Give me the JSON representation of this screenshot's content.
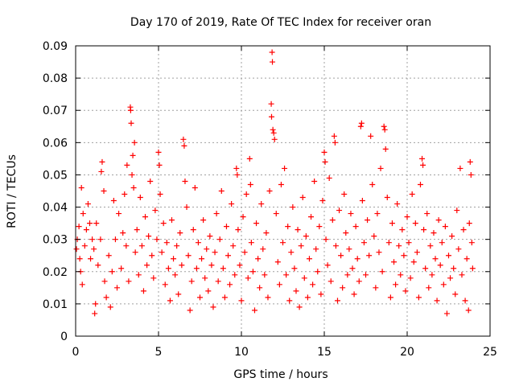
{
  "chart_data": {
    "type": "scatter",
    "title": "Day 170 of 2019, Rate Of TEC Index for receiver oran",
    "xlabel": "GPS time / hours",
    "ylabel": "ROTI / TECUs",
    "xlim": [
      0,
      25
    ],
    "ylim": [
      0,
      0.09
    ],
    "xticks": [
      "0",
      "5",
      "10",
      "15",
      "20",
      "25"
    ],
    "yticks": [
      "0",
      "0.01",
      "0.02",
      "0.03",
      "0.04",
      "0.05",
      "0.06",
      "0.07",
      "0.08",
      "0.09"
    ],
    "grid": true,
    "marker": "plus",
    "color": "#ff0000",
    "series": [
      {
        "points": [
          [
            0.05,
            0.027
          ],
          [
            0.1,
            0.03
          ],
          [
            0.2,
            0.034
          ],
          [
            0.25,
            0.024
          ],
          [
            0.3,
            0.02
          ],
          [
            0.35,
            0.046
          ],
          [
            0.4,
            0.016
          ],
          [
            0.45,
            0.038
          ],
          [
            0.55,
            0.028
          ],
          [
            0.65,
            0.033
          ],
          [
            0.75,
            0.041
          ],
          [
            0.85,
            0.035
          ],
          [
            0.9,
            0.024
          ],
          [
            1.0,
            0.03
          ],
          [
            1.1,
            0.027
          ],
          [
            1.15,
            0.007
          ],
          [
            1.2,
            0.01
          ],
          [
            1.25,
            0.035
          ],
          [
            1.35,
            0.022
          ],
          [
            1.5,
            0.03
          ],
          [
            1.55,
            0.051
          ],
          [
            1.6,
            0.054
          ],
          [
            1.7,
            0.045
          ],
          [
            1.75,
            0.017
          ],
          [
            1.85,
            0.012
          ],
          [
            2.0,
            0.025
          ],
          [
            2.1,
            0.009
          ],
          [
            2.2,
            0.02
          ],
          [
            2.3,
            0.042
          ],
          [
            2.4,
            0.03
          ],
          [
            2.5,
            0.015
          ],
          [
            2.6,
            0.038
          ],
          [
            2.75,
            0.021
          ],
          [
            2.85,
            0.032
          ],
          [
            2.95,
            0.044
          ],
          [
            3.05,
            0.028
          ],
          [
            3.1,
            0.053
          ],
          [
            3.2,
            0.017
          ],
          [
            3.3,
            0.071
          ],
          [
            3.32,
            0.07
          ],
          [
            3.35,
            0.066
          ],
          [
            3.4,
            0.05
          ],
          [
            3.45,
            0.056
          ],
          [
            3.5,
            0.046
          ],
          [
            3.55,
            0.06
          ],
          [
            3.6,
            0.026
          ],
          [
            3.7,
            0.033
          ],
          [
            3.8,
            0.019
          ],
          [
            3.9,
            0.043
          ],
          [
            4.0,
            0.028
          ],
          [
            4.1,
            0.014
          ],
          [
            4.2,
            0.037
          ],
          [
            4.3,
            0.022
          ],
          [
            4.4,
            0.031
          ],
          [
            4.5,
            0.048
          ],
          [
            4.6,
            0.025
          ],
          [
            4.7,
            0.018
          ],
          [
            4.8,
            0.039
          ],
          [
            4.9,
            0.03
          ],
          [
            5.0,
            0.057
          ],
          [
            5.05,
            0.053
          ],
          [
            5.1,
            0.044
          ],
          [
            5.2,
            0.026
          ],
          [
            5.3,
            0.035
          ],
          [
            5.4,
            0.016
          ],
          [
            5.5,
            0.029
          ],
          [
            5.6,
            0.021
          ],
          [
            5.7,
            0.011
          ],
          [
            5.8,
            0.036
          ],
          [
            5.9,
            0.024
          ],
          [
            6.0,
            0.019
          ],
          [
            6.1,
            0.028
          ],
          [
            6.2,
            0.013
          ],
          [
            6.3,
            0.032
          ],
          [
            6.4,
            0.022
          ],
          [
            6.5,
            0.061
          ],
          [
            6.55,
            0.059
          ],
          [
            6.6,
            0.048
          ],
          [
            6.7,
            0.04
          ],
          [
            6.8,
            0.025
          ],
          [
            6.9,
            0.008
          ],
          [
            7.0,
            0.017
          ],
          [
            7.1,
            0.033
          ],
          [
            7.2,
            0.046
          ],
          [
            7.3,
            0.021
          ],
          [
            7.4,
            0.029
          ],
          [
            7.5,
            0.012
          ],
          [
            7.6,
            0.024
          ],
          [
            7.7,
            0.036
          ],
          [
            7.8,
            0.018
          ],
          [
            7.9,
            0.027
          ],
          [
            8.0,
            0.014
          ],
          [
            8.1,
            0.031
          ],
          [
            8.2,
            0.022
          ],
          [
            8.3,
            0.009
          ],
          [
            8.4,
            0.026
          ],
          [
            8.5,
            0.038
          ],
          [
            8.6,
            0.017
          ],
          [
            8.7,
            0.03
          ],
          [
            8.8,
            0.045
          ],
          [
            8.9,
            0.021
          ],
          [
            9.0,
            0.012
          ],
          [
            9.1,
            0.034
          ],
          [
            9.2,
            0.025
          ],
          [
            9.3,
            0.016
          ],
          [
            9.4,
            0.041
          ],
          [
            9.5,
            0.028
          ],
          [
            9.6,
            0.019
          ],
          [
            9.7,
            0.052
          ],
          [
            9.75,
            0.05
          ],
          [
            9.8,
            0.033
          ],
          [
            9.9,
            0.022
          ],
          [
            10.0,
            0.011
          ],
          [
            10.1,
            0.037
          ],
          [
            10.2,
            0.026
          ],
          [
            10.3,
            0.044
          ],
          [
            10.4,
            0.018
          ],
          [
            10.5,
            0.055
          ],
          [
            10.55,
            0.047
          ],
          [
            10.6,
            0.029
          ],
          [
            10.7,
            0.02
          ],
          [
            10.8,
            0.008
          ],
          [
            10.9,
            0.035
          ],
          [
            11.0,
            0.024
          ],
          [
            11.1,
            0.015
          ],
          [
            11.2,
            0.041
          ],
          [
            11.3,
            0.027
          ],
          [
            11.4,
            0.019
          ],
          [
            11.5,
            0.032
          ],
          [
            11.6,
            0.012
          ],
          [
            11.7,
            0.045
          ],
          [
            11.8,
            0.072
          ],
          [
            11.82,
            0.068
          ],
          [
            11.85,
            0.088
          ],
          [
            11.87,
            0.085
          ],
          [
            11.9,
            0.064
          ],
          [
            11.95,
            0.063
          ],
          [
            12.0,
            0.061
          ],
          [
            12.1,
            0.038
          ],
          [
            12.2,
            0.023
          ],
          [
            12.3,
            0.016
          ],
          [
            12.4,
            0.047
          ],
          [
            12.5,
            0.029
          ],
          [
            12.6,
            0.052
          ],
          [
            12.7,
            0.019
          ],
          [
            12.8,
            0.034
          ],
          [
            12.9,
            0.011
          ],
          [
            13.0,
            0.026
          ],
          [
            13.1,
            0.04
          ],
          [
            13.2,
            0.021
          ],
          [
            13.3,
            0.014
          ],
          [
            13.4,
            0.033
          ],
          [
            13.5,
            0.009
          ],
          [
            13.6,
            0.028
          ],
          [
            13.7,
            0.043
          ],
          [
            13.8,
            0.018
          ],
          [
            13.9,
            0.031
          ],
          [
            14.0,
            0.012
          ],
          [
            14.1,
            0.024
          ],
          [
            14.2,
            0.037
          ],
          [
            14.3,
            0.016
          ],
          [
            14.4,
            0.048
          ],
          [
            14.5,
            0.027
          ],
          [
            14.6,
            0.02
          ],
          [
            14.7,
            0.034
          ],
          [
            14.8,
            0.013
          ],
          [
            14.9,
            0.042
          ],
          [
            15.0,
            0.057
          ],
          [
            15.05,
            0.054
          ],
          [
            15.1,
            0.03
          ],
          [
            15.2,
            0.022
          ],
          [
            15.3,
            0.049
          ],
          [
            15.4,
            0.017
          ],
          [
            15.5,
            0.036
          ],
          [
            15.6,
            0.062
          ],
          [
            15.65,
            0.06
          ],
          [
            15.7,
            0.028
          ],
          [
            15.8,
            0.011
          ],
          [
            15.9,
            0.039
          ],
          [
            16.0,
            0.025
          ],
          [
            16.1,
            0.015
          ],
          [
            16.2,
            0.044
          ],
          [
            16.3,
            0.032
          ],
          [
            16.4,
            0.019
          ],
          [
            16.5,
            0.027
          ],
          [
            16.6,
            0.038
          ],
          [
            16.7,
            0.021
          ],
          [
            16.8,
            0.013
          ],
          [
            16.9,
            0.034
          ],
          [
            17.0,
            0.024
          ],
          [
            17.1,
            0.017
          ],
          [
            17.2,
            0.065
          ],
          [
            17.25,
            0.066
          ],
          [
            17.3,
            0.042
          ],
          [
            17.4,
            0.029
          ],
          [
            17.5,
            0.019
          ],
          [
            17.6,
            0.036
          ],
          [
            17.7,
            0.025
          ],
          [
            17.8,
            0.062
          ],
          [
            17.9,
            0.047
          ],
          [
            18.0,
            0.031
          ],
          [
            18.1,
            0.015
          ],
          [
            18.2,
            0.038
          ],
          [
            18.3,
            0.026
          ],
          [
            18.4,
            0.052
          ],
          [
            18.5,
            0.02
          ],
          [
            18.6,
            0.065
          ],
          [
            18.65,
            0.064
          ],
          [
            18.7,
            0.058
          ],
          [
            18.8,
            0.043
          ],
          [
            18.9,
            0.029
          ],
          [
            19.0,
            0.012
          ],
          [
            19.1,
            0.035
          ],
          [
            19.2,
            0.023
          ],
          [
            19.3,
            0.016
          ],
          [
            19.4,
            0.041
          ],
          [
            19.5,
            0.028
          ],
          [
            19.6,
            0.019
          ],
          [
            19.7,
            0.033
          ],
          [
            19.8,
            0.025
          ],
          [
            19.9,
            0.014
          ],
          [
            20.0,
            0.037
          ],
          [
            20.1,
            0.029
          ],
          [
            20.2,
            0.018
          ],
          [
            20.3,
            0.044
          ],
          [
            20.4,
            0.023
          ],
          [
            20.5,
            0.035
          ],
          [
            20.6,
            0.026
          ],
          [
            20.7,
            0.012
          ],
          [
            20.8,
            0.047
          ],
          [
            20.9,
            0.055
          ],
          [
            20.95,
            0.053
          ],
          [
            21.0,
            0.033
          ],
          [
            21.1,
            0.021
          ],
          [
            21.2,
            0.038
          ],
          [
            21.3,
            0.015
          ],
          [
            21.4,
            0.028
          ],
          [
            21.5,
            0.019
          ],
          [
            21.6,
            0.032
          ],
          [
            21.7,
            0.024
          ],
          [
            21.8,
            0.011
          ],
          [
            21.9,
            0.036
          ],
          [
            22.0,
            0.022
          ],
          [
            22.1,
            0.029
          ],
          [
            22.2,
            0.016
          ],
          [
            22.3,
            0.034
          ],
          [
            22.4,
            0.007
          ],
          [
            22.5,
            0.025
          ],
          [
            22.6,
            0.018
          ],
          [
            22.7,
            0.031
          ],
          [
            22.8,
            0.021
          ],
          [
            22.9,
            0.013
          ],
          [
            23.0,
            0.039
          ],
          [
            23.1,
            0.027
          ],
          [
            23.2,
            0.052
          ],
          [
            23.3,
            0.019
          ],
          [
            23.4,
            0.033
          ],
          [
            23.5,
            0.011
          ],
          [
            23.6,
            0.024
          ],
          [
            23.7,
            0.008
          ],
          [
            23.75,
            0.035
          ],
          [
            23.8,
            0.054
          ],
          [
            23.85,
            0.05
          ],
          [
            23.9,
            0.029
          ],
          [
            23.95,
            0.021
          ]
        ]
      }
    ]
  }
}
